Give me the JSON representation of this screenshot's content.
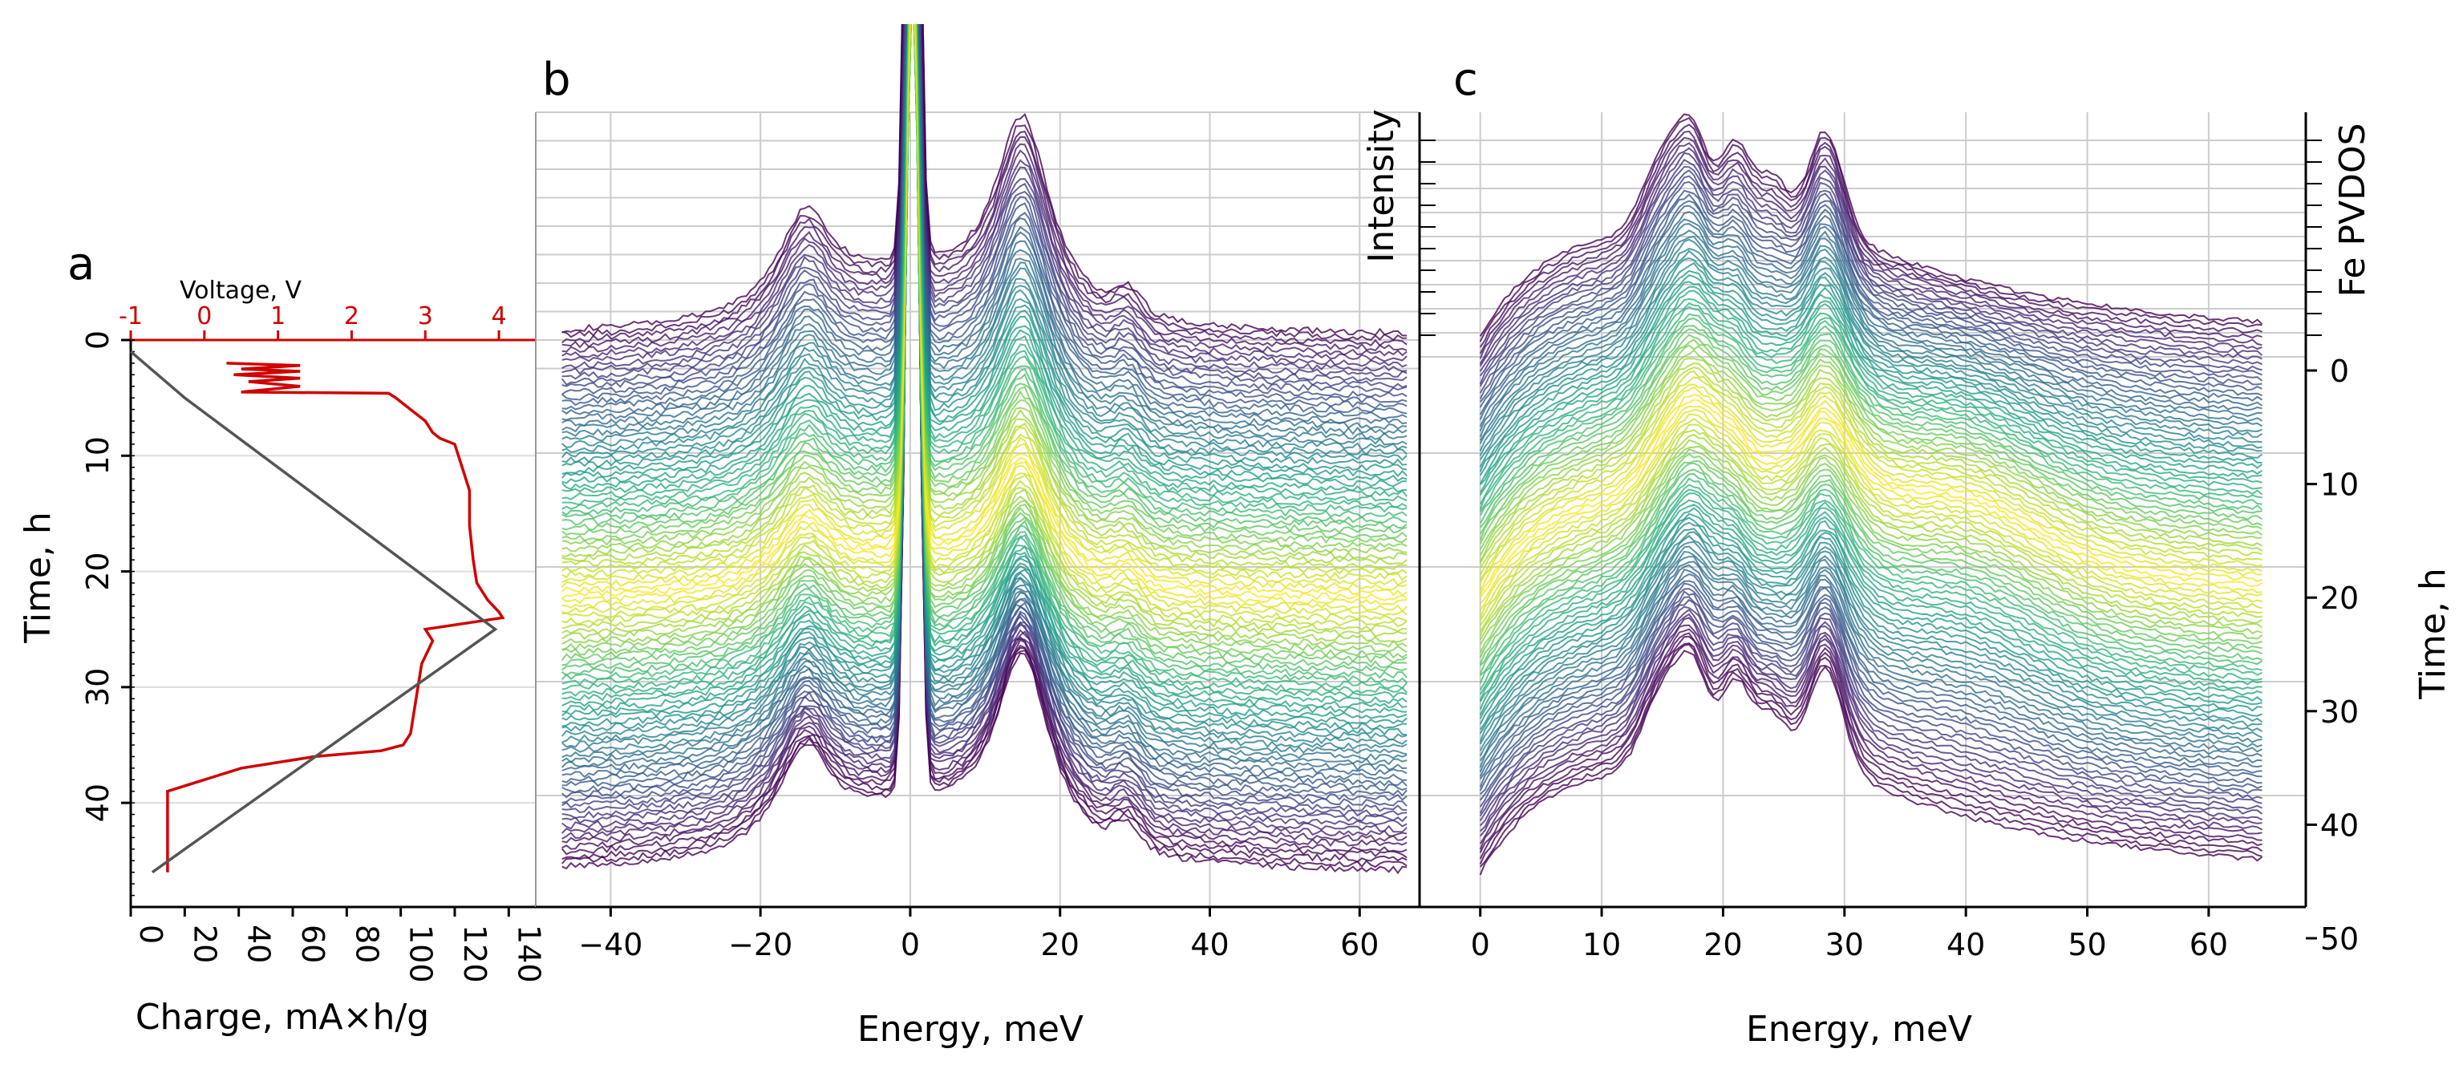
{
  "panels": {
    "a": {
      "letter": "a",
      "top_axis_title": "Voltage, V",
      "top_ticks": [
        "-1",
        "0",
        "1",
        "2",
        "3",
        "4"
      ],
      "left_axis_title": "Time, h",
      "left_ticks": [
        "0",
        "10",
        "20",
        "30",
        "40"
      ],
      "bottom_axis_title": "Charge, mA×h/g",
      "bottom_ticks": [
        "0",
        "20",
        "40",
        "60",
        "80",
        "100",
        "120",
        "140"
      ]
    },
    "b": {
      "letter": "b",
      "x_axis_title": "Energy, meV",
      "x_ticks": [
        "−40",
        "−20",
        "0",
        "20",
        "40",
        "60"
      ]
    },
    "c": {
      "letter": "c",
      "x_axis_title": "Energy, meV",
      "x_ticks": [
        "0",
        "10",
        "20",
        "30",
        "40",
        "50",
        "60"
      ],
      "left_axis_title": "Intensity",
      "right_axis_title": "Time, h",
      "right_top_title": "Fe PVDOS",
      "right_ticks": [
        "0",
        "10",
        "20",
        "30",
        "40",
        "50"
      ]
    }
  },
  "colors": {
    "voltage": "#d00000",
    "charge": "#555555",
    "colormap": "viridis"
  },
  "chart_data": [
    {
      "panel": "a",
      "type": "line",
      "title": "",
      "x2label": "Voltage, V",
      "xlabel": "Charge, mA×h/g",
      "ylabel": "Time, h",
      "x2lim": [
        -1,
        4.5
      ],
      "xlim": [
        0,
        150
      ],
      "ylim": [
        0,
        49
      ],
      "y_inverted": true,
      "series": [
        {
          "axis": "voltage",
          "color": "#d00000",
          "x": [
            0.3,
            1.3,
            0.5,
            1.3,
            0.4,
            1.3,
            0.6,
            1.3,
            0.5,
            2.5,
            2.6,
            2.8,
            3.0,
            3.05,
            3.1,
            3.2,
            3.4,
            3.45,
            3.5,
            3.6,
            3.6,
            3.65,
            3.7,
            3.85,
            4.0,
            4.05,
            3.0,
            3.1,
            2.95,
            2.9,
            2.85,
            2.8,
            2.7,
            2.4,
            1.5,
            0.5,
            -0.5,
            -0.5,
            -0.5,
            -0.5,
            -0.5
          ],
          "y": [
            2.0,
            2.2,
            2.5,
            2.7,
            3.0,
            3.3,
            3.6,
            4.0,
            4.5,
            4.6,
            5.0,
            6.0,
            7.0,
            7.5,
            8.0,
            8.5,
            9.0,
            10.0,
            11.0,
            13.0,
            16.0,
            19.0,
            21.0,
            22.5,
            23.5,
            24.0,
            25.0,
            26.0,
            28.0,
            30.0,
            32.0,
            34.0,
            35.0,
            35.5,
            36.0,
            37.0,
            39.0,
            41.0,
            43.0,
            45.0,
            46.0
          ]
        },
        {
          "axis": "charge",
          "color": "#555555",
          "x": [
            0,
            20,
            135,
            20,
            8
          ],
          "y": [
            1,
            5,
            25,
            44,
            46
          ]
        }
      ]
    },
    {
      "panel": "b",
      "type": "line",
      "title": "",
      "xlabel": "Energy, meV",
      "ylabel": "",
      "xlim": [
        -50,
        68
      ],
      "n_spectra": 105,
      "stacking": "waterfall",
      "colormap": "viridis",
      "peaks_meV": [
        -14,
        0,
        15,
        29
      ]
    },
    {
      "panel": "c",
      "type": "line",
      "title": "",
      "xlabel": "Energy, meV",
      "ylabel": "Intensity",
      "y2label": "Time, h",
      "y2lim": [
        0,
        50
      ],
      "xlim": [
        -5,
        68
      ],
      "n_spectra": 105,
      "stacking": "waterfall",
      "colormap": "viridis",
      "peaks_meV": [
        15,
        17.5,
        21,
        24,
        28.5,
        40
      ]
    }
  ]
}
